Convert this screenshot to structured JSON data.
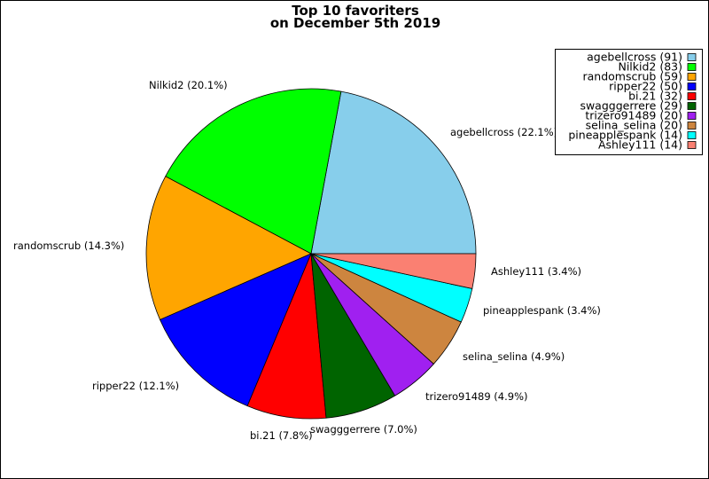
{
  "chart_data": {
    "type": "pie",
    "title": [
      "Top 10 favoriters",
      "on December 5th 2019"
    ],
    "slices": [
      {
        "name": "agebellcross",
        "value": 91,
        "label": "agebellcross (22.1%)",
        "legend": "agebellcross (91)",
        "color": "#87ceeb"
      },
      {
        "name": "Nilkid2",
        "value": 83,
        "label": "Nilkid2 (20.1%)",
        "legend": "Nilkid2 (83)",
        "color": "#00ff00"
      },
      {
        "name": "randomscrub",
        "value": 59,
        "label": "randomscrub (14.3%)",
        "legend": "randomscrub (59)",
        "color": "#ffa500"
      },
      {
        "name": "ripper22",
        "value": 50,
        "label": "ripper22 (12.1%)",
        "legend": "ripper22 (50)",
        "color": "#0000ff"
      },
      {
        "name": "bi.21",
        "value": 32,
        "label": "bi.21 (7.8%)",
        "legend": "bi.21 (32)",
        "color": "#ff0000"
      },
      {
        "name": "swagggerrere",
        "value": 29,
        "label": "swagggerrere (7.0%)",
        "legend": "swagggerrere (29)",
        "color": "#006400"
      },
      {
        "name": "trizero91489",
        "value": 20,
        "label": "trizero91489 (4.9%)",
        "legend": "trizero91489 (20)",
        "color": "#a020f0"
      },
      {
        "name": "selina_selina",
        "value": 20,
        "label": "selina_selina (4.9%)",
        "legend": "selina_selina (20)",
        "color": "#cd853f"
      },
      {
        "name": "pineapplespank",
        "value": 14,
        "label": "pineapplespank (3.4%)",
        "legend": "pineapplespank (14)",
        "color": "#00ffff"
      },
      {
        "name": "Ashley111",
        "value": 14,
        "label": "Ashley111 (3.4%)",
        "legend": "Ashley111 (14)",
        "color": "#fa8072"
      }
    ],
    "start": "east",
    "direction": "counterclockwise",
    "legend_position": "top-right"
  }
}
